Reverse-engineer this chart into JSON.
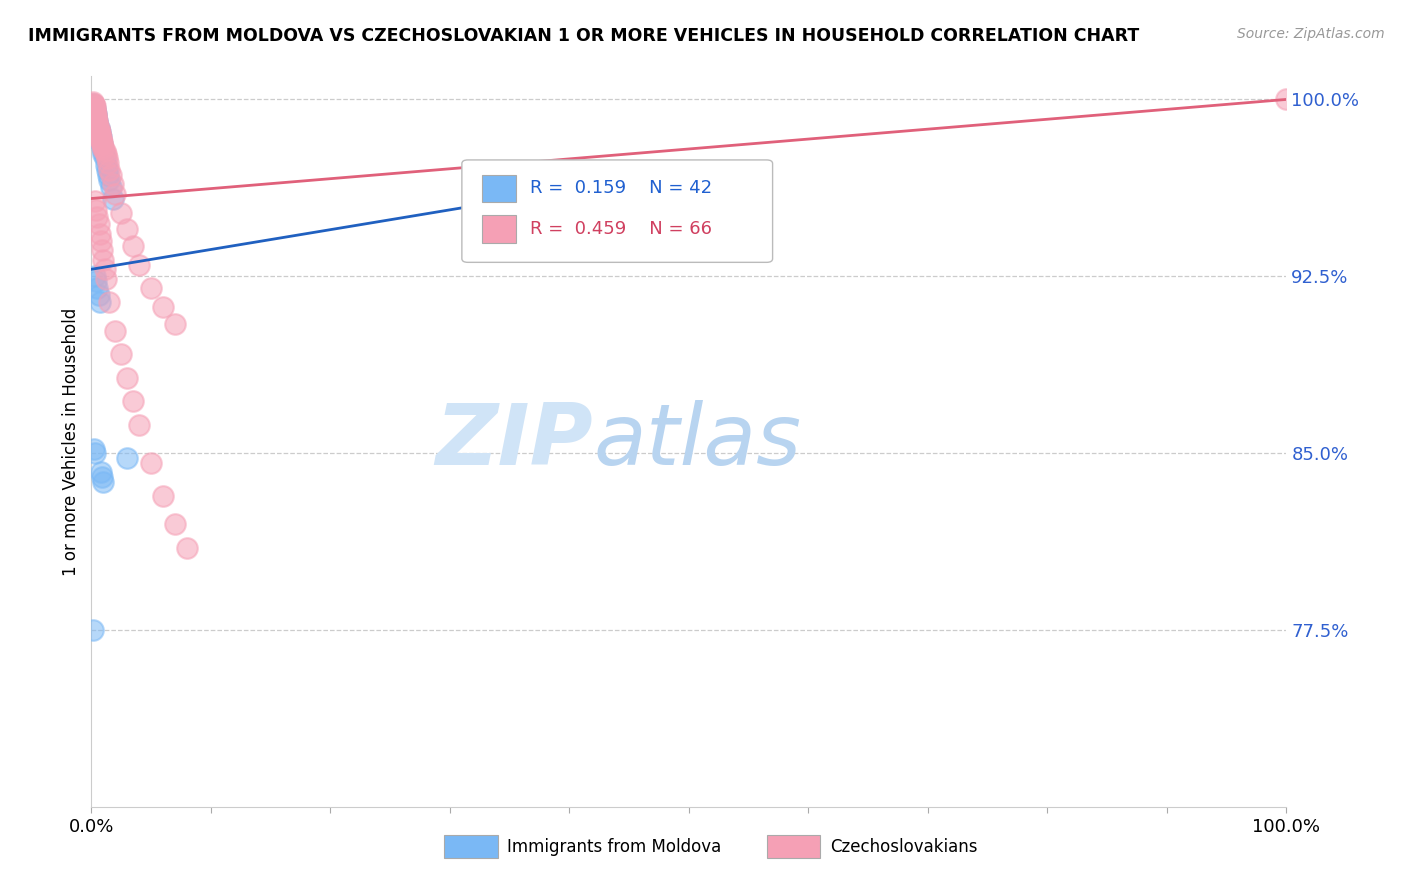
{
  "title": "IMMIGRANTS FROM MOLDOVA VS CZECHOSLOVAKIAN 1 OR MORE VEHICLES IN HOUSEHOLD CORRELATION CHART",
  "source": "Source: ZipAtlas.com",
  "ylabel": "1 or more Vehicles in Household",
  "legend1_label": "Immigrants from Moldova",
  "legend2_label": "Czechoslovakians",
  "R_blue": 0.159,
  "N_blue": 42,
  "R_pink": 0.459,
  "N_pink": 66,
  "blue_color": "#7ab8f5",
  "pink_color": "#f5a0b5",
  "blue_line_color": "#2060c0",
  "pink_line_color": "#e0607a",
  "blue_scatter_color": "#85bef5",
  "pink_scatter_color": "#f5a8b8",
  "watermark_zip": "ZIP",
  "watermark_atlas": "atlas",
  "xlim": [
    0.0,
    1.0
  ],
  "ylim": [
    0.7,
    1.01
  ],
  "yticks": [
    1.0,
    0.925,
    0.85,
    0.775
  ],
  "ytick_labels": [
    "100.0%",
    "92.5%",
    "85.0%",
    "77.5%"
  ],
  "blue_x": [
    0.001,
    0.002,
    0.002,
    0.002,
    0.003,
    0.003,
    0.003,
    0.004,
    0.004,
    0.004,
    0.005,
    0.005,
    0.005,
    0.006,
    0.006,
    0.007,
    0.007,
    0.008,
    0.008,
    0.009,
    0.009,
    0.01,
    0.01,
    0.011,
    0.012,
    0.013,
    0.014,
    0.015,
    0.016,
    0.018,
    0.003,
    0.004,
    0.005,
    0.006,
    0.007,
    0.008,
    0.009,
    0.01,
    0.03,
    0.002,
    0.003,
    0.001
  ],
  "blue_y": [
    0.998,
    0.997,
    0.996,
    0.995,
    0.996,
    0.995,
    0.994,
    0.994,
    0.993,
    0.992,
    0.991,
    0.99,
    0.989,
    0.988,
    0.987,
    0.986,
    0.985,
    0.984,
    0.982,
    0.981,
    0.98,
    0.978,
    0.977,
    0.975,
    0.972,
    0.97,
    0.968,
    0.966,
    0.963,
    0.958,
    0.925,
    0.923,
    0.92,
    0.917,
    0.914,
    0.842,
    0.84,
    0.838,
    0.848,
    0.852,
    0.85,
    0.775
  ],
  "pink_x": [
    0.001,
    0.001,
    0.002,
    0.002,
    0.002,
    0.003,
    0.003,
    0.003,
    0.003,
    0.004,
    0.004,
    0.004,
    0.004,
    0.005,
    0.005,
    0.005,
    0.005,
    0.006,
    0.006,
    0.006,
    0.007,
    0.007,
    0.007,
    0.008,
    0.008,
    0.008,
    0.009,
    0.009,
    0.01,
    0.01,
    0.011,
    0.012,
    0.013,
    0.014,
    0.015,
    0.016,
    0.018,
    0.02,
    0.025,
    0.03,
    0.035,
    0.04,
    0.05,
    0.06,
    0.07,
    0.003,
    0.004,
    0.005,
    0.006,
    0.007,
    0.008,
    0.009,
    0.01,
    0.011,
    0.012,
    0.015,
    0.02,
    0.025,
    0.03,
    0.035,
    0.04,
    0.05,
    0.06,
    0.07,
    0.08,
    1.0
  ],
  "pink_y": [
    0.999,
    0.998,
    0.998,
    0.997,
    0.996,
    0.997,
    0.996,
    0.995,
    0.994,
    0.994,
    0.993,
    0.992,
    0.991,
    0.991,
    0.99,
    0.989,
    0.988,
    0.988,
    0.987,
    0.986,
    0.986,
    0.985,
    0.984,
    0.984,
    0.983,
    0.982,
    0.982,
    0.981,
    0.98,
    0.979,
    0.978,
    0.977,
    0.975,
    0.973,
    0.97,
    0.968,
    0.964,
    0.96,
    0.952,
    0.945,
    0.938,
    0.93,
    0.92,
    0.912,
    0.905,
    0.957,
    0.953,
    0.95,
    0.947,
    0.943,
    0.94,
    0.936,
    0.932,
    0.928,
    0.924,
    0.914,
    0.902,
    0.892,
    0.882,
    0.872,
    0.862,
    0.846,
    0.832,
    0.82,
    0.81,
    1.0
  ],
  "blue_line_x": [
    0.0,
    0.5
  ],
  "blue_line_y": [
    0.928,
    0.97
  ],
  "pink_line_x": [
    0.0,
    1.0
  ],
  "pink_line_y": [
    0.958,
    1.0
  ]
}
